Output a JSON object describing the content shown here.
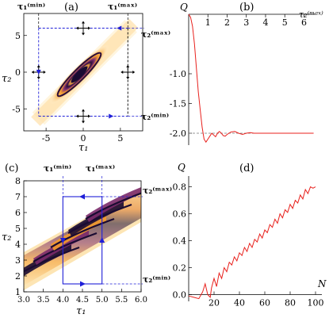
{
  "colors": {
    "curve": "#e8201c",
    "box": "#1f1fd8",
    "dark": "#1a0b32",
    "mid": "#7a2a6a",
    "orange": "#f39a2c",
    "pale": "#ffe9bc",
    "dashed_ref": "#777777"
  },
  "panels": {
    "a": {
      "label": "(a)",
      "xlabel": "τ₁",
      "ylabel": "τ₂",
      "xticks": [
        "-5",
        "0",
        "5"
      ],
      "yticks": [
        "5",
        "0",
        "-5"
      ],
      "tau1_min": "τ₁⁽ᵐⁱⁿ⁾",
      "tau1_max": "τ₁⁽ᵐᵃˣ⁾",
      "tau2_max": "τ₂⁽ᵐᵃˣ⁾",
      "tau2_min": "τ₂⁽ᵐⁱⁿ⁾"
    },
    "b": {
      "label": "(b)",
      "ylabel": "Q",
      "xlabel": "τ₂⁽ᵐᵃˣ⁾",
      "xticks": [
        "1",
        "2",
        "3",
        "4",
        "5",
        "6"
      ],
      "yticks": [
        "-1.0",
        "-1.5",
        "-2.0"
      ]
    },
    "c": {
      "label": "(c)",
      "xlabel": "τ₁",
      "ylabel": "τ₂",
      "xticks": [
        "3.0",
        "3.5",
        "4.0",
        "4.5",
        "5.0",
        "5.5",
        "6.0"
      ],
      "yticks": [
        "8",
        "7",
        "6",
        "5",
        "4",
        "3",
        "2",
        "1"
      ],
      "tau1_min": "τ₁⁽ᵐⁱⁿ⁾",
      "tau1_max": "τ₁⁽ᵐᵃˣ⁾",
      "tau2_max": "τ₂⁽ᵐᵃˣ⁾",
      "tau2_min": "τ₂⁽ᵐⁱⁿ⁾"
    },
    "d": {
      "label": "(d)",
      "ylabel": "Q",
      "xlabel": "N",
      "xticks": [
        "20",
        "40",
        "60",
        "80",
        "100"
      ],
      "yticks": [
        "0.8",
        "0.6",
        "0.4",
        "0.2",
        "0.0"
      ]
    }
  },
  "chart_data": [
    {
      "panel": "a",
      "type": "heatmap",
      "xlim": [
        -8,
        8
      ],
      "ylim": [
        -8,
        8
      ],
      "box": {
        "tau1_min": -6,
        "tau1_max": 6,
        "tau2_min": -6,
        "tau2_max": 6
      }
    },
    {
      "panel": "b",
      "type": "line",
      "xlabel": "τ₂⁽ᵐᵃˣ⁾",
      "ylabel": "Q",
      "xlim": [
        0,
        6.6
      ],
      "ylim": [
        -2.2,
        0
      ],
      "reference_line": -2.0,
      "x": [
        0.0,
        0.1,
        0.2,
        0.3,
        0.4,
        0.5,
        0.6,
        0.7,
        0.8,
        0.9,
        1.0,
        1.1,
        1.2,
        1.3,
        1.4,
        1.5,
        1.6,
        1.7,
        1.8,
        1.9,
        2.0,
        2.2,
        2.4,
        2.6,
        2.8,
        3.0,
        3.2,
        3.4,
        3.6,
        3.8,
        4.0,
        4.5,
        5.0,
        5.5,
        6.0,
        6.5
      ],
      "y": [
        0.0,
        -0.05,
        -0.2,
        -0.5,
        -0.9,
        -1.3,
        -1.6,
        -1.9,
        -2.1,
        -2.15,
        -2.1,
        -2.05,
        -2.0,
        -2.03,
        -2.06,
        -2.0,
        -1.97,
        -2.0,
        -2.04,
        -2.05,
        -2.02,
        -1.98,
        -1.97,
        -2.0,
        -2.02,
        -2.0,
        -1.99,
        -2.0,
        -2.0,
        -2.0,
        -2.0,
        -2.0,
        -2.0,
        -2.0,
        -2.0,
        -2.0
      ]
    },
    {
      "panel": "c",
      "type": "heatmap",
      "xlim": [
        3.0,
        6.0
      ],
      "ylim": [
        1,
        8
      ],
      "box": {
        "tau1_min": 4.0,
        "tau1_max": 5.0,
        "tau2_min": 1.5,
        "tau2_max": 7.0
      }
    },
    {
      "panel": "d",
      "type": "line",
      "xlabel": "N",
      "ylabel": "Q",
      "xlim": [
        0,
        105
      ],
      "ylim": [
        -0.05,
        0.88
      ],
      "x": [
        0,
        4,
        8,
        11,
        13,
        15,
        17,
        18,
        20,
        22,
        24,
        26,
        28,
        30,
        32,
        34,
        36,
        38,
        40,
        42,
        44,
        46,
        48,
        50,
        52,
        54,
        56,
        58,
        60,
        62,
        64,
        66,
        68,
        70,
        72,
        74,
        76,
        78,
        80,
        82,
        84,
        86,
        88,
        90,
        92,
        94,
        96,
        98,
        100
      ],
      "y": [
        -0.01,
        -0.02,
        -0.03,
        0.02,
        0.08,
        0.0,
        -0.02,
        0.05,
        0.12,
        0.06,
        0.16,
        0.12,
        0.2,
        0.17,
        0.24,
        0.22,
        0.28,
        0.25,
        0.31,
        0.29,
        0.35,
        0.32,
        0.38,
        0.35,
        0.41,
        0.39,
        0.45,
        0.42,
        0.48,
        0.46,
        0.52,
        0.5,
        0.56,
        0.53,
        0.6,
        0.57,
        0.63,
        0.61,
        0.67,
        0.64,
        0.7,
        0.68,
        0.74,
        0.71,
        0.78,
        0.75,
        0.8,
        0.79,
        0.8
      ]
    }
  ]
}
